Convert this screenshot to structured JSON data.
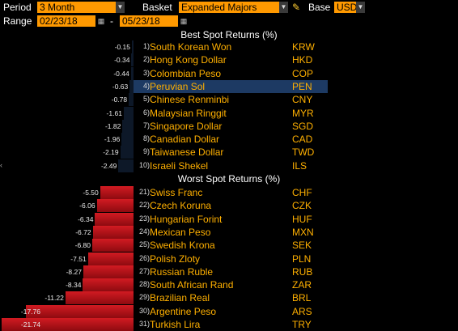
{
  "toolbar": {
    "period_label": "Period",
    "period_value": "3 Month",
    "basket_label": "Basket",
    "basket_value": "Expanded Majors",
    "base_label": "Base",
    "base_value": "USD",
    "range_label": "Range",
    "range_start": "02/23/18",
    "range_dash": "-",
    "range_end": "05/23/18",
    "dropdown_glyph": "▼",
    "calendar_glyph": "▦",
    "pencil_glyph": "✎",
    "accent_color": "#ff9900"
  },
  "best": {
    "title": "Best Spot Returns (%)",
    "rows": [
      {
        "rank": "1)",
        "name": "South Korean Won",
        "code": "KRW",
        "value": "-0.15"
      },
      {
        "rank": "2)",
        "name": "Hong Kong Dollar",
        "code": "HKD",
        "value": "-0.34"
      },
      {
        "rank": "3)",
        "name": "Colombian Peso",
        "code": "COP",
        "value": "-0.44"
      },
      {
        "rank": "4)",
        "name": "Peruvian Sol",
        "code": "PEN",
        "value": "-0.63"
      },
      {
        "rank": "5)",
        "name": "Chinese Renminbi",
        "code": "CNY",
        "value": "-0.78"
      },
      {
        "rank": "6)",
        "name": "Malaysian Ringgit",
        "code": "MYR",
        "value": "-1.61"
      },
      {
        "rank": "7)",
        "name": "Singapore Dollar",
        "code": "SGD",
        "value": "-1.82"
      },
      {
        "rank": "8)",
        "name": "Canadian Dollar",
        "code": "CAD",
        "value": "-1.96"
      },
      {
        "rank": "9)",
        "name": "Taiwanese Dollar",
        "code": "TWD",
        "value": "-2.19"
      },
      {
        "rank": "10)",
        "name": "Israeli Shekel",
        "code": "ILS",
        "value": "-2.49"
      }
    ]
  },
  "worst": {
    "title": "Worst Spot Returns (%)",
    "rows": [
      {
        "rank": "21)",
        "name": "Swiss Franc",
        "code": "CHF",
        "value": "-5.50"
      },
      {
        "rank": "22)",
        "name": "Czech Koruna",
        "code": "CZK",
        "value": "-6.06"
      },
      {
        "rank": "23)",
        "name": "Hungarian Forint",
        "code": "HUF",
        "value": "-6.34"
      },
      {
        "rank": "24)",
        "name": "Mexican Peso",
        "code": "MXN",
        "value": "-6.72"
      },
      {
        "rank": "25)",
        "name": "Swedish Krona",
        "code": "SEK",
        "value": "-6.80"
      },
      {
        "rank": "26)",
        "name": "Polish Zloty",
        "code": "PLN",
        "value": "-7.51"
      },
      {
        "rank": "27)",
        "name": "Russian Ruble",
        "code": "RUB",
        "value": "-8.27"
      },
      {
        "rank": "28)",
        "name": "South African Rand",
        "code": "ZAR",
        "value": "-8.34"
      },
      {
        "rank": "29)",
        "name": "Brazilian Real",
        "code": "BRL",
        "value": "-11.22"
      },
      {
        "rank": "30)",
        "name": "Argentine Peso",
        "code": "ARS",
        "value": "-17.76"
      },
      {
        "rank": "31)",
        "name": "Turkish Lira",
        "code": "TRY",
        "value": "-21.74"
      }
    ]
  },
  "selected_code": "PEN",
  "side_tick": "‹"
}
